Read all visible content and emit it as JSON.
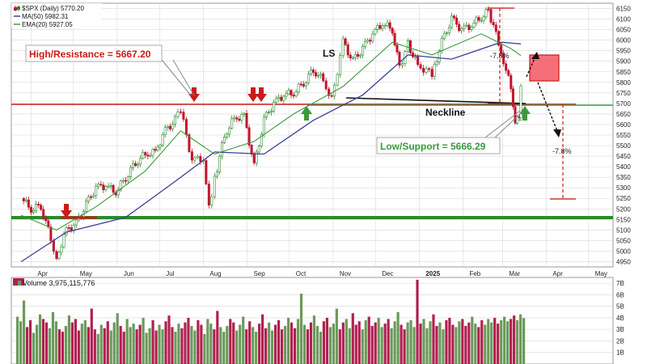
{
  "colors": {
    "up": "#2e8b2e",
    "down": "#c0142c",
    "ma50": "#3a3e9a",
    "ema20": "#3a9a3a",
    "resistance": "#cc1a1a",
    "support": "#3a9a3a",
    "grid": "#d8d8d8",
    "volume_up": "#6a9a5a",
    "volume_down": "#b02050",
    "neckline": "#111111"
  },
  "chart_data": [
    {
      "type": "line",
      "title": "$SPX (Daily) 5770.20",
      "legend": [
        {
          "label": "$SPX (Daily) 5770.20",
          "icon": "candlestick-icon"
        },
        {
          "label": "MA(50) 5982.31",
          "color": "#3a3e9a"
        },
        {
          "label": "EMA(20) 5927.05",
          "color": "#3a9a3a"
        }
      ],
      "xlabel": "",
      "ylabel": "",
      "x_tick_labels": [
        "Apr",
        "May",
        "Jun",
        "Jul",
        "Aug",
        "Sep",
        "Oct",
        "Nov",
        "Dec",
        "2025",
        "Feb",
        "Mar",
        "Apr",
        "May"
      ],
      "y_tick_labels": [
        "4950",
        "5000",
        "5050",
        "5100",
        "5150",
        "5200",
        "5250",
        "5300",
        "5350",
        "5400",
        "5450",
        "5500",
        "5550",
        "5600",
        "5650",
        "5700",
        "5750",
        "5800",
        "5850",
        "5900",
        "5950",
        "6000",
        "6050",
        "6100",
        "6150"
      ],
      "ylim": [
        4925,
        6175
      ],
      "grid": true,
      "legend_position": "top-left",
      "series": [
        {
          "name": "$SPX (Daily)",
          "x": [
            "2024-03-25",
            "2024-04-01",
            "2024-04-08",
            "2024-04-15",
            "2024-04-19",
            "2024-04-26",
            "2024-05-03",
            "2024-05-10",
            "2024-05-17",
            "2024-05-24",
            "2024-05-31",
            "2024-06-07",
            "2024-06-14",
            "2024-06-21",
            "2024-06-28",
            "2024-07-05",
            "2024-07-12",
            "2024-07-16",
            "2024-07-24",
            "2024-08-01",
            "2024-08-05",
            "2024-08-09",
            "2024-08-16",
            "2024-08-23",
            "2024-08-30",
            "2024-09-06",
            "2024-09-13",
            "2024-09-20",
            "2024-09-27",
            "2024-10-04",
            "2024-10-11",
            "2024-10-18",
            "2024-10-25",
            "2024-10-31",
            "2024-11-08",
            "2024-11-15",
            "2024-11-22",
            "2024-11-29",
            "2024-12-06",
            "2024-12-13",
            "2024-12-18",
            "2024-12-24",
            "2024-12-31",
            "2025-01-10",
            "2025-01-17",
            "2025-01-24",
            "2025-01-31",
            "2025-02-07",
            "2025-02-14",
            "2025-02-19",
            "2025-02-28",
            "2025-03-07",
            "2025-03-10",
            "2025-03-13",
            "2025-03-14"
          ],
          "values": [
            5250,
            5200,
            5215,
            5060,
            4970,
            5100,
            5130,
            5220,
            5300,
            5310,
            5280,
            5350,
            5420,
            5460,
            5470,
            5570,
            5620,
            5667,
            5430,
            5440,
            5200,
            5340,
            5550,
            5630,
            5640,
            5400,
            5620,
            5700,
            5740,
            5750,
            5800,
            5860,
            5810,
            5720,
            5990,
            5900,
            5960,
            6030,
            6080,
            6050,
            5870,
            5980,
            5880,
            5840,
            5990,
            6100,
            6050,
            6070,
            6110,
            6140,
            5950,
            5770,
            5620,
            5650,
            5770
          ]
        },
        {
          "name": "MA(50)",
          "x": [
            "2024-03-25",
            "2024-04-26",
            "2024-06-07",
            "2024-07-12",
            "2024-08-09",
            "2024-09-13",
            "2024-10-18",
            "2024-11-22",
            "2024-12-24",
            "2025-01-24",
            "2025-02-28",
            "2025-03-14"
          ],
          "values": [
            4950,
            5090,
            5160,
            5330,
            5470,
            5460,
            5620,
            5740,
            5930,
            5910,
            5990,
            5982
          ]
        },
        {
          "name": "EMA(20)",
          "x": [
            "2024-03-25",
            "2024-04-19",
            "2024-05-17",
            "2024-06-21",
            "2024-07-16",
            "2024-08-09",
            "2024-09-06",
            "2024-10-04",
            "2024-11-08",
            "2024-12-13",
            "2025-01-10",
            "2025-02-14",
            "2025-03-07",
            "2025-03-14"
          ],
          "values": [
            5170,
            5100,
            5210,
            5380,
            5570,
            5460,
            5520,
            5650,
            5780,
            5990,
            5930,
            6030,
            5960,
            5927
          ]
        }
      ],
      "annotations": [
        {
          "text": "High/Resistance = 5667.20",
          "value": 5667.2,
          "color": "#cc1a1a"
        },
        {
          "text": "Low/Support = 5666.29",
          "value": 5666.29,
          "color": "#3a9a3a"
        },
        {
          "text": "LS"
        },
        {
          "text": "Neckline"
        },
        {
          "text": "-7.8%"
        },
        {
          "text": "-7.8%"
        }
      ]
    },
    {
      "type": "bar",
      "title": "Volume 3,975,115,776",
      "y_tick_labels": [
        "7B",
        "6B",
        "5B",
        "4B",
        "3B",
        "2B",
        "1B"
      ],
      "ylim": [
        0,
        7.5
      ],
      "grid": true,
      "series": [
        {
          "name": "Volume",
          "unit": "B",
          "values": [
            4.1,
            3.7,
            5.5,
            3.2,
            3.8,
            2.7,
            3.4,
            4.3,
            3.9,
            3.6,
            3.1,
            4.5,
            3.7,
            3.0,
            2.8,
            3.3,
            4.2,
            3.6,
            3.9,
            2.9,
            3.5,
            3.8,
            3.2,
            4.8,
            3.0,
            2.6,
            3.4,
            3.1,
            3.7,
            2.9,
            3.6,
            4.4,
            3.3,
            2.8,
            3.9,
            3.2,
            3.5,
            3.0,
            3.4,
            4.0,
            2.7,
            3.1,
            3.8,
            2.9,
            3.4,
            3.0,
            3.7,
            4.2,
            3.2,
            2.8,
            3.5,
            3.1,
            3.6,
            4.0,
            3.3,
            2.9,
            3.8,
            3.4,
            2.6,
            3.9,
            3.5,
            3.0,
            4.6,
            3.2,
            2.8,
            3.3,
            3.9,
            3.6,
            2.9,
            3.4,
            4.1,
            3.0,
            3.7,
            3.2,
            2.8,
            3.5,
            4.3,
            3.1,
            3.6,
            2.9,
            3.4,
            3.8,
            3.0,
            3.3,
            4.0,
            3.6,
            3.1,
            3.9,
            6.1,
            3.4,
            3.0,
            3.6,
            4.2,
            3.3,
            2.8,
            3.7,
            4.0,
            3.2,
            3.5,
            4.8,
            3.0,
            3.6,
            3.9,
            3.1,
            4.4,
            3.4,
            3.7,
            3.0,
            3.8,
            4.1,
            3.3,
            3.6,
            4.0,
            3.2,
            3.5,
            3.9,
            3.1,
            3.7,
            4.5,
            3.4,
            3.0,
            3.6,
            3.8,
            3.2,
            7.3,
            3.5,
            3.9,
            3.1,
            3.7,
            4.3,
            3.3,
            3.6,
            3.0,
            3.8,
            4.0,
            3.4,
            3.2,
            3.7,
            3.9,
            3.3,
            3.6,
            4.1,
            3.5,
            3.2,
            3.8,
            3.4,
            3.9,
            3.6,
            4.0,
            3.5,
            3.8,
            4.1,
            3.7,
            3.9,
            4.2,
            3.8,
            4.3,
            3.98
          ]
        }
      ]
    }
  ]
}
